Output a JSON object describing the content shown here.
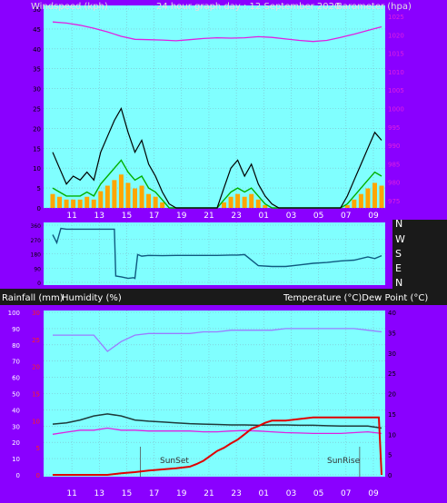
{
  "header": {
    "left_label": "Windspeed (kph)",
    "center_label": "24 hour graph day : 12 September 2020",
    "right_label": "Barometer (hpa)"
  },
  "direction_labels": [
    "N",
    "W",
    "S",
    "E",
    "N"
  ],
  "bottom_header": {
    "left_label_1": "Rainfall (mm)",
    "left_label_2": "Humidity (%)",
    "right_label": "Temperature (°C)Dew Point (°C)"
  },
  "x_ticks": [
    "11",
    "13",
    "15",
    "17",
    "19",
    "21",
    "23",
    "01",
    "03",
    "05",
    "07",
    "09"
  ],
  "annotations": {
    "sunset": "SunSet",
    "sunrise": "SunRise"
  },
  "colors": {
    "plot_bg": "#80ffff",
    "frame": "#8a00ff",
    "grid": "#7fb8c8",
    "wind_gust": "#000000",
    "wind_avg": "#00b000",
    "wind_fill": "#ffa500",
    "barometer": "#e020e0",
    "direction": "#0f5a80",
    "humidity": "#9a7cff",
    "temperature": "#1e3a3a",
    "dewpoint": "#e020e0",
    "rainfall": "#e00000"
  },
  "chart_data": [
    {
      "type": "line",
      "title": "Windspeed (kph) / Barometer (hpa)",
      "y_left_ticks": [
        "0",
        "5",
        "10",
        "15",
        "20",
        "25",
        "30",
        "35",
        "40",
        "45",
        "50"
      ],
      "y_right_ticks": [
        "975",
        "980",
        "985",
        "990",
        "995",
        "1000",
        "1005",
        "1010",
        "1015",
        "1020",
        "1025"
      ],
      "ylim_left": [
        0,
        50
      ],
      "ylim_right": [
        973,
        1027
      ],
      "x_hours": [
        0,
        24
      ],
      "series": [
        {
          "name": "Windspeed gust",
          "x": [
            0,
            0.5,
            1,
            1.5,
            2,
            2.5,
            3,
            3.5,
            4,
            4.5,
            5,
            5.5,
            6,
            6.5,
            7,
            7.5,
            8,
            8.5,
            9,
            9.5,
            10,
            10.5,
            11,
            11.5,
            12,
            12.5,
            13,
            13.5,
            14,
            14.5,
            15,
            15.5,
            16,
            16.5,
            17,
            17.5,
            18,
            18.5,
            19,
            19.5,
            20,
            20.5,
            21,
            21.5,
            22,
            22.5,
            23,
            23.5,
            24
          ],
          "y": [
            14,
            10,
            6,
            8,
            7,
            9,
            7,
            14,
            18,
            22,
            25,
            19,
            14,
            17,
            11,
            8,
            4,
            1,
            0,
            0,
            0,
            0,
            0,
            0,
            0,
            5,
            10,
            12,
            8,
            11,
            6,
            3,
            1,
            0,
            0,
            0,
            0,
            0,
            0,
            0,
            0,
            0,
            0,
            3,
            7,
            11,
            15,
            19,
            17
          ]
        },
        {
          "name": "Windspeed average",
          "x": [
            0,
            0.5,
            1,
            1.5,
            2,
            2.5,
            3,
            3.5,
            4,
            4.5,
            5,
            5.5,
            6,
            6.5,
            7,
            7.5,
            8,
            8.5,
            9,
            9.5,
            10,
            10.5,
            11,
            11.5,
            12,
            12.5,
            13,
            13.5,
            14,
            14.5,
            15,
            15.5,
            16,
            16.5,
            17,
            17.5,
            18,
            18.5,
            19,
            19.5,
            20,
            20.5,
            21,
            21.5,
            22,
            22.5,
            23,
            23.5,
            24
          ],
          "y": [
            5,
            4,
            3,
            3,
            3,
            4,
            3,
            6,
            8,
            10,
            12,
            9,
            7,
            8,
            5,
            4,
            2,
            0,
            0,
            0,
            0,
            0,
            0,
            0,
            0,
            2,
            4,
            5,
            4,
            5,
            3,
            1,
            0,
            0,
            0,
            0,
            0,
            0,
            0,
            0,
            0,
            0,
            0,
            1,
            3,
            5,
            7,
            9,
            8
          ]
        },
        {
          "name": "Barometer",
          "x": [
            0,
            1,
            2,
            3,
            4,
            5,
            6,
            7,
            8,
            9,
            10,
            11,
            12,
            13,
            14,
            15,
            16,
            17,
            18,
            19,
            20,
            21,
            22,
            23,
            24
          ],
          "y": [
            1023.5,
            1023.2,
            1022.6,
            1021.8,
            1020.8,
            1019.6,
            1018.8,
            1018.7,
            1018.6,
            1018.4,
            1018.7,
            1019.0,
            1019.2,
            1019.1,
            1019.2,
            1019.5,
            1019.3,
            1018.9,
            1018.5,
            1018.2,
            1018.5,
            1019.3,
            1020.2,
            1021.2,
            1022.2
          ]
        }
      ]
    },
    {
      "type": "line",
      "title": "Wind direction",
      "y_ticks": [
        "360",
        "270",
        "180",
        "90",
        "0"
      ],
      "ylim": [
        0,
        360
      ],
      "series": [
        {
          "name": "Direction",
          "x": [
            0,
            0.3,
            0.6,
            1,
            1.5,
            2,
            3,
            4.5,
            4.6,
            5,
            5.5,
            5.9,
            6,
            6.2,
            6.5,
            7,
            8,
            9,
            10,
            11,
            12,
            13,
            13.5,
            14,
            15,
            16,
            17,
            18,
            19,
            20,
            21,
            22,
            23,
            23.5,
            24
          ],
          "y": [
            300,
            250,
            340,
            335,
            335,
            335,
            335,
            335,
            40,
            35,
            25,
            30,
            25,
            175,
            165,
            170,
            168,
            170,
            170,
            170,
            170,
            172,
            172,
            175,
            105,
            100,
            100,
            110,
            120,
            125,
            135,
            140,
            160,
            150,
            168
          ]
        }
      ]
    },
    {
      "type": "line",
      "title": "Rainfall (mm) / Humidity (%) / Temperature (°C) / Dew Point (°C)",
      "y_left_ticks": [
        "0",
        "10",
        "20",
        "30",
        "40",
        "50",
        "60",
        "70",
        "80",
        "90",
        "100"
      ],
      "y_left_red_ticks": [
        "0",
        "5",
        "10",
        "15",
        "20",
        "25",
        "30"
      ],
      "y_right_ticks": [
        "0",
        "5",
        "10",
        "15",
        "20",
        "25",
        "30",
        "35",
        "40"
      ],
      "ylim_left": [
        0,
        100
      ],
      "ylim_right": [
        0,
        40
      ],
      "series": [
        {
          "name": "Humidity",
          "x": [
            0,
            1,
            2,
            3,
            4,
            5,
            6,
            7,
            8,
            9,
            10,
            11,
            12,
            13,
            14,
            15,
            16,
            17,
            18,
            19,
            20,
            21,
            22,
            23,
            24
          ],
          "y": [
            86,
            86,
            86,
            86,
            76,
            82,
            86,
            87,
            87,
            87,
            87,
            88,
            88,
            89,
            89,
            89,
            89,
            90,
            90,
            90,
            90,
            90,
            90,
            89,
            88
          ]
        },
        {
          "name": "Temperature",
          "x": [
            0,
            1,
            2,
            3,
            4,
            5,
            6,
            7,
            8,
            9,
            10,
            11,
            12,
            13,
            14,
            15,
            16,
            17,
            18,
            19,
            20,
            21,
            22,
            23,
            24
          ],
          "y": [
            12.5,
            12.8,
            13.5,
            14.5,
            15,
            14.5,
            13.5,
            13.2,
            13,
            12.8,
            12.6,
            12.5,
            12.4,
            12.3,
            12.3,
            12.2,
            12.3,
            12.3,
            12.2,
            12.2,
            12.1,
            12,
            12,
            12,
            11.5
          ]
        },
        {
          "name": "Dew Point",
          "x": [
            0,
            1,
            2,
            3,
            4,
            5,
            6,
            7,
            8,
            9,
            10,
            11,
            12,
            13,
            14,
            15,
            16,
            17,
            18,
            19,
            20,
            21,
            22,
            23,
            24
          ],
          "y": [
            10,
            10.5,
            11,
            11,
            11.5,
            11,
            11,
            10.8,
            10.8,
            10.8,
            10.8,
            10.6,
            10.6,
            10.8,
            10.9,
            10.8,
            10.6,
            10.4,
            10.3,
            10.2,
            10.2,
            10.2,
            10.4,
            10.6,
            10.2
          ]
        },
        {
          "name": "Rainfall",
          "x": [
            0,
            2,
            4,
            5,
            6,
            7,
            8,
            9,
            10,
            10.5,
            11,
            11.5,
            12,
            12.5,
            13,
            13.5,
            14,
            14.5,
            15,
            15.5,
            16,
            17,
            18,
            19,
            20,
            21,
            22,
            23,
            23.8,
            24
          ],
          "y": [
            0,
            0,
            0,
            0.3,
            0.5,
            0.8,
            1,
            1.2,
            1.5,
            2,
            2.6,
            3.5,
            4.4,
            5,
            5.8,
            6.5,
            7.5,
            8.5,
            9,
            9.6,
            10,
            10,
            10.3,
            10.6,
            10.6,
            10.6,
            10.6,
            10.6,
            10.6,
            0
          ]
        }
      ]
    }
  ]
}
